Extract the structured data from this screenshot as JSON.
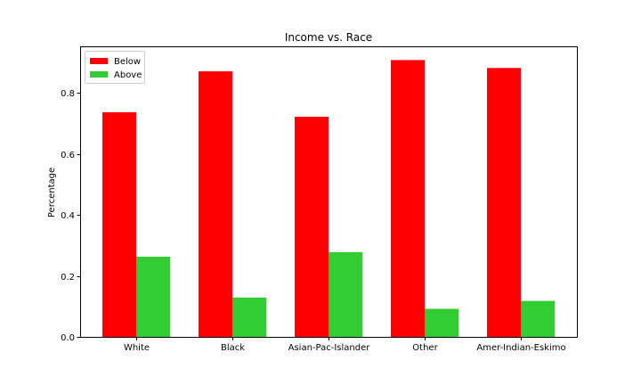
{
  "chart_data": {
    "type": "bar",
    "title": "Income vs. Race",
    "xlabel": "",
    "ylabel": "Percentage",
    "categories": [
      "White",
      "Black",
      "Asian-Pac-Islander",
      "Other",
      "Amer-Indian-Eskimo"
    ],
    "series": [
      {
        "name": "Below",
        "color": "#ff0000",
        "values": [
          0.737,
          0.871,
          0.722,
          0.908,
          0.882
        ]
      },
      {
        "name": "Above",
        "color": "#32cd32",
        "values": [
          0.263,
          0.129,
          0.278,
          0.092,
          0.118
        ]
      }
    ],
    "yticks": [
      0.0,
      0.2,
      0.4,
      0.6,
      0.8
    ],
    "ytick_labels": [
      "0.0",
      "0.2",
      "0.4",
      "0.6",
      "0.8"
    ],
    "ylim": [
      0,
      0.953
    ],
    "grid": false,
    "legend_position": "top-left"
  }
}
